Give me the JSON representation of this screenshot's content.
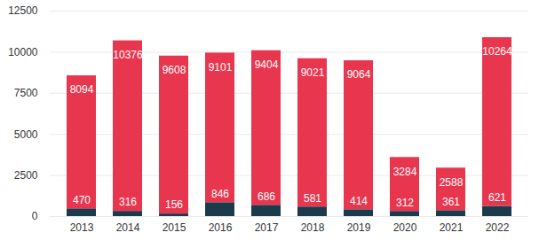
{
  "chart_data": {
    "type": "bar",
    "stacked": true,
    "data_labels": true,
    "grid": true,
    "categories": [
      "2013",
      "2014",
      "2015",
      "2016",
      "2017",
      "2018",
      "2019",
      "2020",
      "2021",
      "2022"
    ],
    "series": [
      {
        "color": "#1b3a4b",
        "values": [
          470,
          316,
          156,
          846,
          686,
          581,
          414,
          312,
          361,
          621
        ]
      },
      {
        "color": "#e8364e",
        "values": [
          8094,
          10376,
          9608,
          9101,
          9404,
          9021,
          9064,
          3284,
          2588,
          10264
        ]
      }
    ],
    "ylim": [
      0,
      12500
    ],
    "yticks": [
      0,
      2500,
      5000,
      7500,
      10000,
      12500
    ]
  }
}
